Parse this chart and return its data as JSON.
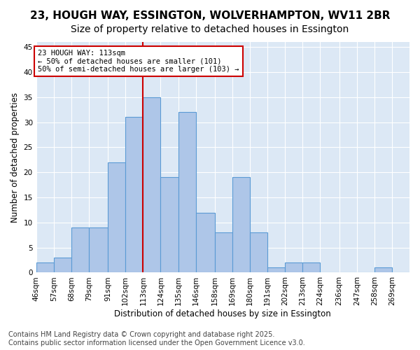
{
  "title_line1": "23, HOUGH WAY, ESSINGTON, WOLVERHAMPTON, WV11 2BR",
  "title_line2": "Size of property relative to detached houses in Essington",
  "xlabel": "Distribution of detached houses by size in Essington",
  "ylabel": "Number of detached properties",
  "bin_labels": [
    "46sqm",
    "57sqm",
    "68sqm",
    "79sqm",
    "91sqm",
    "102sqm",
    "113sqm",
    "124sqm",
    "135sqm",
    "146sqm",
    "158sqm",
    "169sqm",
    "180sqm",
    "191sqm",
    "202sqm",
    "213sqm",
    "224sqm",
    "236sqm",
    "247sqm",
    "258sqm",
    "269sqm"
  ],
  "bin_edges": [
    46,
    57,
    68,
    79,
    91,
    102,
    113,
    124,
    135,
    146,
    158,
    169,
    180,
    191,
    202,
    213,
    224,
    236,
    247,
    258,
    269,
    280
  ],
  "counts": [
    2,
    3,
    9,
    9,
    22,
    31,
    35,
    19,
    32,
    12,
    8,
    19,
    8,
    1,
    2,
    2,
    0,
    0,
    0,
    1,
    0
  ],
  "bar_color": "#aec6e8",
  "bar_edge_color": "#5b9bd5",
  "red_line_x": 113,
  "annotation_text": "23 HOUGH WAY: 113sqm\n← 50% of detached houses are smaller (101)\n50% of semi-detached houses are larger (103) →",
  "annotation_box_color": "#ffffff",
  "annotation_box_edge": "#cc0000",
  "annotation_text_color": "#000000",
  "red_line_color": "#cc0000",
  "ylim": [
    0,
    46
  ],
  "yticks": [
    0,
    5,
    10,
    15,
    20,
    25,
    30,
    35,
    40,
    45
  ],
  "background_color": "#dce8f5",
  "footer_line1": "Contains HM Land Registry data © Crown copyright and database right 2025.",
  "footer_line2": "Contains public sector information licensed under the Open Government Licence v3.0.",
  "title_fontsize": 11,
  "subtitle_fontsize": 10,
  "axis_label_fontsize": 8.5,
  "tick_fontsize": 7.5,
  "footer_fontsize": 7
}
